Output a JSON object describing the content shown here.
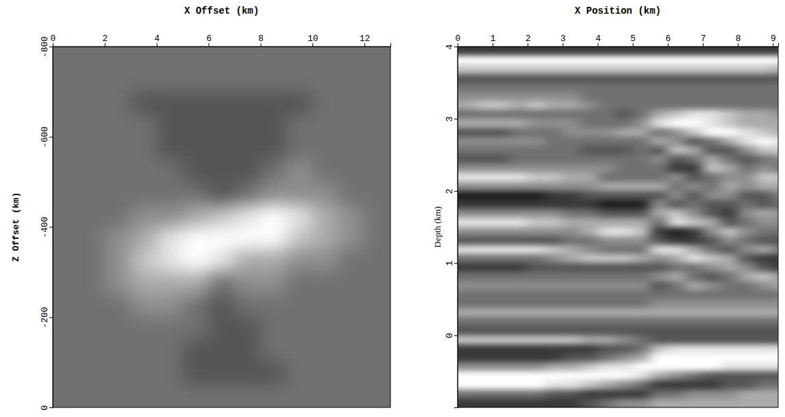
{
  "chart_data": [
    {
      "type": "heatmap",
      "x_label": "X Offset (km)",
      "y_label": "Z Offset (km)",
      "xlim": [
        0,
        13
      ],
      "ylim": [
        0,
        -800
      ],
      "xticks": [
        0,
        2,
        4,
        6,
        8,
        10,
        12
      ],
      "yticks": [
        -800,
        -600,
        -400,
        -200,
        0
      ],
      "zlim": [
        0,
        9
      ],
      "x_bins": [
        0,
        1,
        2,
        3,
        4,
        5,
        6,
        7,
        8,
        9,
        10,
        11,
        12,
        13
      ],
      "y_bins": [
        -800,
        -750,
        -700,
        -650,
        -600,
        -550,
        -500,
        -450,
        -400,
        -350,
        -300,
        -250,
        -200,
        -150,
        -100,
        -50,
        0
      ],
      "z": [
        [
          4,
          4,
          4,
          4,
          4,
          4,
          4,
          4,
          4,
          4,
          4,
          4,
          4
        ],
        [
          4,
          4,
          4,
          4,
          4,
          4,
          4,
          4,
          4,
          4,
          4,
          4,
          4
        ],
        [
          4,
          4,
          4,
          3,
          3,
          3,
          3,
          3,
          3,
          3,
          4,
          4,
          4
        ],
        [
          4,
          4,
          4,
          4,
          3,
          3,
          3,
          3,
          3,
          4,
          4,
          4,
          4
        ],
        [
          4,
          4,
          4,
          4,
          3,
          3,
          3,
          3,
          3,
          4,
          4,
          4,
          4
        ],
        [
          4,
          4,
          4,
          4,
          4,
          3,
          3,
          3,
          4,
          5,
          4,
          4,
          4
        ],
        [
          4,
          4,
          4,
          4,
          4,
          4,
          3,
          4,
          5,
          5,
          5,
          4,
          4
        ],
        [
          4,
          4,
          4,
          5,
          5,
          6,
          7,
          8,
          9,
          8,
          6,
          5,
          4
        ],
        [
          4,
          4,
          5,
          6,
          8,
          9,
          9,
          9,
          9,
          7,
          6,
          5,
          4
        ],
        [
          4,
          4,
          5,
          7,
          8,
          9,
          8,
          6,
          6,
          5,
          5,
          4,
          4
        ],
        [
          4,
          4,
          5,
          6,
          6,
          6,
          4,
          5,
          5,
          4,
          4,
          4,
          4
        ],
        [
          4,
          4,
          4,
          5,
          5,
          4,
          3,
          4,
          4,
          4,
          4,
          4,
          4
        ],
        [
          4,
          4,
          4,
          4,
          4,
          4,
          3,
          3,
          4,
          4,
          4,
          4,
          4
        ],
        [
          4,
          4,
          4,
          4,
          4,
          3,
          3,
          3,
          4,
          4,
          4,
          4,
          4
        ],
        [
          4,
          4,
          4,
          4,
          4,
          3,
          3,
          3,
          3,
          4,
          4,
          4,
          4
        ],
        [
          4,
          4,
          4,
          4,
          4,
          4,
          4,
          4,
          4,
          4,
          4,
          4,
          4
        ]
      ]
    },
    {
      "type": "heatmap",
      "x_label": "X Position (km)",
      "y_label": "Depth (km)",
      "xlim": [
        0,
        9.15
      ],
      "ylim": [
        -1,
        4
      ],
      "xticks": [
        0,
        1,
        2,
        3,
        4,
        5,
        6,
        7,
        8,
        9
      ],
      "yticks": [
        4,
        3,
        2,
        1,
        0
      ],
      "zlim": [
        0,
        9
      ],
      "x_bins": [
        0,
        0.5,
        1,
        1.5,
        2,
        2.5,
        3,
        3.5,
        4,
        4.5,
        5,
        5.5,
        6,
        6.5,
        7,
        7.5,
        8,
        8.5,
        9,
        9.15
      ],
      "y_bins": [
        4,
        3.875,
        3.75,
        3.625,
        3.5,
        3.375,
        3.25,
        3.125,
        3,
        2.875,
        2.75,
        2.625,
        2.5,
        2.375,
        2.25,
        2.125,
        2,
        1.875,
        1.75,
        1.625,
        1.5,
        1.375,
        1.25,
        1.125,
        1,
        0.875,
        0.75,
        0.625,
        0.5,
        0.375,
        0.25,
        0.125,
        0,
        -0.125,
        -0.25,
        -0.375,
        -0.5,
        -0.625,
        -0.75,
        -0.875,
        -1
      ],
      "z": [
        [
          2,
          2,
          2,
          2,
          2,
          2,
          2,
          2,
          2,
          2,
          2,
          2,
          2,
          2,
          2,
          2,
          2,
          2,
          2
        ],
        [
          9,
          9,
          9,
          9,
          9,
          9,
          9,
          9,
          9,
          9,
          9,
          9,
          9,
          9,
          9,
          9,
          9,
          9,
          9
        ],
        [
          7,
          7,
          7,
          7,
          7,
          7,
          7,
          7,
          7,
          7,
          7,
          7,
          7,
          7,
          7,
          7,
          7,
          7,
          6
        ],
        [
          3,
          3,
          3,
          3,
          3,
          3,
          3,
          3,
          3,
          3,
          3,
          3,
          3,
          3,
          3,
          3,
          3,
          3,
          3
        ],
        [
          4,
          4,
          4,
          4,
          4,
          4,
          4,
          4,
          4,
          4,
          4,
          4,
          4,
          4,
          4,
          4,
          4,
          4,
          4
        ],
        [
          5,
          5,
          5,
          5,
          5,
          5,
          5,
          4,
          4,
          4,
          4,
          4,
          4,
          4,
          4,
          4,
          4,
          4,
          4
        ],
        [
          6,
          7,
          7,
          6,
          7,
          6,
          6,
          5,
          4,
          4,
          4,
          4,
          4,
          4,
          4,
          4,
          4,
          4,
          4
        ],
        [
          4,
          4,
          4,
          4,
          4,
          4,
          4,
          4,
          4,
          3,
          4,
          6,
          7,
          8,
          8,
          7,
          6,
          6,
          5
        ],
        [
          6,
          6,
          6,
          6,
          5,
          5,
          5,
          4,
          4,
          4,
          5,
          8,
          9,
          9,
          8,
          7,
          6,
          6,
          6
        ],
        [
          3,
          3,
          3,
          4,
          4,
          4,
          5,
          5,
          5,
          6,
          6,
          4,
          5,
          7,
          9,
          9,
          8,
          7,
          6
        ],
        [
          5,
          5,
          5,
          5,
          5,
          4,
          4,
          4,
          4,
          4,
          4,
          6,
          5,
          3,
          4,
          6,
          8,
          9,
          8
        ],
        [
          4,
          4,
          4,
          4,
          4,
          4,
          4,
          3,
          3,
          3,
          4,
          3,
          7,
          6,
          3,
          3,
          5,
          7,
          7
        ],
        [
          3,
          3,
          3,
          4,
          4,
          4,
          4,
          4,
          4,
          4,
          4,
          5,
          3,
          4,
          6,
          4,
          3,
          4,
          5
        ],
        [
          5,
          5,
          5,
          5,
          5,
          5,
          5,
          5,
          5,
          4,
          4,
          4,
          2,
          2,
          7,
          6,
          4,
          5,
          4
        ],
        [
          8,
          8,
          8,
          8,
          7,
          7,
          6,
          6,
          4,
          4,
          4,
          4,
          5,
          3,
          4,
          5,
          5,
          7,
          7
        ],
        [
          5,
          5,
          5,
          5,
          5,
          5,
          5,
          5,
          6,
          6,
          6,
          6,
          4,
          5,
          4,
          6,
          5,
          6,
          6
        ],
        [
          1,
          1,
          1,
          1,
          1,
          2,
          2,
          3,
          3,
          3,
          3,
          3,
          5,
          3,
          5,
          5,
          3,
          3,
          5
        ],
        [
          2,
          2,
          2,
          2,
          2,
          2,
          2,
          2,
          1,
          1,
          1,
          5,
          3,
          4,
          3,
          3,
          4,
          3,
          4
        ],
        [
          5,
          5,
          5,
          5,
          5,
          5,
          4,
          4,
          3,
          3,
          3,
          6,
          7,
          5,
          3,
          2,
          5,
          6,
          5
        ],
        [
          8,
          8,
          8,
          8,
          7,
          7,
          6,
          6,
          6,
          6,
          6,
          4,
          8,
          7,
          6,
          3,
          4,
          5,
          5
        ],
        [
          5,
          5,
          5,
          5,
          5,
          5,
          5,
          6,
          8,
          8,
          7,
          2,
          1,
          2,
          5,
          7,
          5,
          4,
          4
        ],
        [
          3,
          3,
          3,
          3,
          3,
          3,
          4,
          4,
          5,
          5,
          5,
          3,
          2,
          2,
          3,
          5,
          4,
          3,
          3
        ],
        [
          8,
          8,
          8,
          8,
          8,
          7,
          6,
          5,
          4,
          4,
          4,
          8,
          8,
          6,
          4,
          3,
          5,
          6,
          4
        ],
        [
          4,
          4,
          4,
          4,
          4,
          5,
          6,
          7,
          7,
          7,
          6,
          5,
          6,
          8,
          7,
          6,
          3,
          2,
          2
        ],
        [
          2,
          2,
          2,
          2,
          3,
          3,
          3,
          3,
          3,
          3,
          3,
          3,
          4,
          4,
          5,
          6,
          5,
          3,
          2
        ],
        [
          4,
          4,
          4,
          4,
          4,
          4,
          4,
          4,
          4,
          4,
          4,
          5,
          6,
          4,
          3,
          4,
          6,
          7,
          5
        ],
        [
          5,
          5,
          5,
          5,
          5,
          5,
          5,
          5,
          5,
          5,
          5,
          3,
          4,
          6,
          5,
          4,
          4,
          5,
          6
        ],
        [
          4,
          4,
          4,
          4,
          4,
          4,
          4,
          4,
          4,
          4,
          4,
          4,
          4,
          4,
          4,
          4,
          4,
          4,
          4
        ],
        [
          4,
          4,
          4,
          4,
          4,
          4,
          4,
          4,
          4,
          4,
          4,
          5,
          5,
          5,
          5,
          5,
          5,
          5,
          5
        ],
        [
          6,
          6,
          6,
          6,
          6,
          6,
          6,
          6,
          6,
          6,
          6,
          6,
          6,
          6,
          6,
          6,
          6,
          6,
          6
        ],
        [
          4,
          4,
          4,
          4,
          4,
          4,
          4,
          4,
          4,
          4,
          4,
          4,
          4,
          4,
          4,
          4,
          4,
          4,
          4
        ],
        [
          3,
          3,
          3,
          3,
          3,
          3,
          3,
          3,
          3,
          3,
          3,
          3,
          3,
          3,
          3,
          3,
          3,
          3,
          3
        ],
        [
          7,
          7,
          7,
          7,
          7,
          7,
          7,
          6,
          6,
          5,
          4,
          3,
          3,
          3,
          3,
          3,
          3,
          3,
          3
        ],
        [
          2,
          2,
          2,
          2,
          2,
          2,
          2,
          2,
          3,
          3,
          4,
          7,
          8,
          8,
          8,
          8,
          8,
          8,
          8
        ],
        [
          2,
          2,
          2,
          2,
          2,
          2,
          3,
          3,
          4,
          5,
          6,
          9,
          9,
          9,
          9,
          9,
          9,
          9,
          9
        ],
        [
          5,
          5,
          5,
          5,
          5,
          6,
          6,
          7,
          8,
          8,
          9,
          9,
          9,
          9,
          9,
          8,
          8,
          8,
          8
        ],
        [
          9,
          9,
          9,
          9,
          9,
          9,
          9,
          9,
          9,
          9,
          8,
          6,
          5,
          4,
          3,
          3,
          3,
          3,
          3
        ],
        [
          9,
          9,
          9,
          9,
          9,
          8,
          8,
          7,
          6,
          5,
          4,
          2,
          2,
          2,
          2,
          3,
          3,
          4,
          4
        ],
        [
          4,
          4,
          4,
          4,
          4,
          3,
          3,
          2,
          2,
          2,
          2,
          4,
          4,
          5,
          5,
          5,
          6,
          6,
          6
        ],
        [
          2,
          2,
          2,
          2,
          2,
          2,
          2,
          3,
          4,
          5,
          5,
          6,
          6,
          6,
          6,
          6,
          6,
          6,
          6
        ]
      ]
    }
  ]
}
